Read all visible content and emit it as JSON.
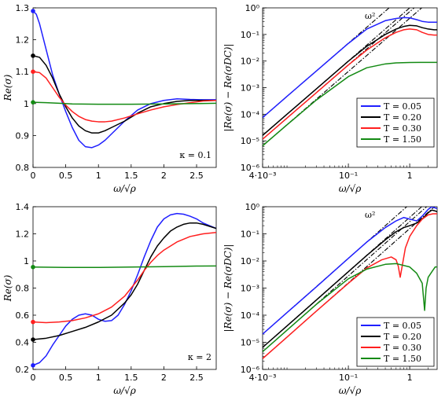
{
  "colors": {
    "blue": "#1f1fff",
    "black": "#000000",
    "red": "#ff1f1f",
    "green": "#138a13"
  },
  "legend_labels": [
    "T = 0.05",
    "T = 0.20",
    "T = 0.30",
    "T = 1.50"
  ],
  "chart_data": [
    {
      "type": "line",
      "panel": "top-left",
      "xlabel": "ω/√ρ",
      "ylabel": "Re(σ)",
      "annotation": "κ = 0.1",
      "xlim": [
        0,
        2.8
      ],
      "ylim": [
        0.8,
        1.3
      ],
      "xticks": [
        0,
        0.5,
        1,
        1.5,
        2,
        2.5
      ],
      "xtick_labels": [
        "0",
        "0.5",
        "1",
        "1.5",
        "2",
        "2.5"
      ],
      "yticks": [
        0.8,
        0.9,
        1.0,
        1.1,
        1.2,
        1.3
      ],
      "ytick_labels": [
        "0.8",
        "0.9",
        "1",
        "1.1",
        "1.2",
        "1.3"
      ],
      "series": [
        {
          "name": "T = 0.05",
          "color": "blue",
          "x": [
            0,
            0.05,
            0.1,
            0.2,
            0.3,
            0.4,
            0.5,
            0.6,
            0.7,
            0.8,
            0.9,
            1.0,
            1.1,
            1.2,
            1.4,
            1.6,
            1.8,
            2.0,
            2.2,
            2.4,
            2.6,
            2.8
          ],
          "y": [
            1.29,
            1.28,
            1.25,
            1.17,
            1.09,
            1.03,
            0.975,
            0.925,
            0.885,
            0.865,
            0.862,
            0.87,
            0.885,
            0.905,
            0.945,
            0.98,
            1.0,
            1.01,
            1.015,
            1.013,
            1.012,
            1.012
          ]
        },
        {
          "name": "T = 0.20",
          "color": "black",
          "x": [
            0,
            0.1,
            0.2,
            0.3,
            0.4,
            0.5,
            0.6,
            0.7,
            0.8,
            0.9,
            1.0,
            1.1,
            1.2,
            1.4,
            1.6,
            1.8,
            2.0,
            2.2,
            2.4,
            2.6,
            2.8
          ],
          "y": [
            1.15,
            1.145,
            1.12,
            1.08,
            1.03,
            0.99,
            0.955,
            0.93,
            0.915,
            0.908,
            0.908,
            0.915,
            0.925,
            0.945,
            0.97,
            0.99,
            1.0,
            1.007,
            1.01,
            1.01,
            1.01
          ]
        },
        {
          "name": "T = 0.30",
          "color": "red",
          "x": [
            0,
            0.1,
            0.2,
            0.3,
            0.4,
            0.5,
            0.6,
            0.7,
            0.8,
            0.9,
            1.0,
            1.1,
            1.2,
            1.4,
            1.6,
            1.8,
            2.0,
            2.2,
            2.4,
            2.6,
            2.8
          ],
          "y": [
            1.1,
            1.097,
            1.08,
            1.05,
            1.02,
            0.995,
            0.975,
            0.96,
            0.95,
            0.945,
            0.943,
            0.943,
            0.945,
            0.955,
            0.968,
            0.98,
            0.99,
            0.997,
            1.003,
            1.008,
            1.01
          ]
        },
        {
          "name": "T = 1.50",
          "color": "green",
          "x": [
            0,
            0.2,
            0.4,
            0.6,
            1.0,
            1.5,
            2.0,
            2.5,
            2.8
          ],
          "y": [
            1.004,
            1.003,
            1.001,
            0.999,
            0.998,
            0.998,
            0.999,
            1.0,
            1.001
          ]
        }
      ]
    },
    {
      "type": "line",
      "panel": "top-right",
      "xscale": "log",
      "yscale": "log",
      "xlabel": "ω/√ρ",
      "ylabel": "|Re(σ) − Re(σDC)|",
      "annotation": "ω²",
      "xlim": [
        0.004,
        2.8
      ],
      "ylim": [
        1e-06,
        1
      ],
      "xtick_labels": [
        "4·10⁻³",
        "10⁻¹",
        "1"
      ],
      "ytick_labels": [
        "10⁻⁶",
        "10⁻⁵",
        "10⁻⁴",
        "10⁻³",
        "10⁻²",
        "10⁻¹",
        "10⁰"
      ],
      "legend": "right",
      "series": [
        {
          "name": "T = 0.05",
          "color": "blue",
          "x": [
            0.004,
            0.01,
            0.03,
            0.1,
            0.2,
            0.4,
            0.6,
            0.8,
            1.0,
            1.3,
            1.6,
            2.0,
            2.5,
            2.8
          ],
          "y": [
            7.5e-05,
            0.00047,
            0.0042,
            0.046,
            0.16,
            0.33,
            0.4,
            0.43,
            0.42,
            0.36,
            0.31,
            0.29,
            0.29,
            0.29
          ]
        },
        {
          "name": "T = 0.20",
          "color": "black",
          "x": [
            0.004,
            0.01,
            0.03,
            0.1,
            0.2,
            0.4,
            0.6,
            0.8,
            1.0,
            1.3,
            1.6,
            2.0,
            2.5,
            2.8
          ],
          "y": [
            1.6e-05,
            0.0001,
            0.00089,
            0.0099,
            0.036,
            0.1,
            0.16,
            0.2,
            0.22,
            0.21,
            0.18,
            0.16,
            0.15,
            0.15
          ]
        },
        {
          "name": "T = 0.30",
          "color": "red",
          "x": [
            0.004,
            0.01,
            0.03,
            0.1,
            0.2,
            0.4,
            0.6,
            0.8,
            1.0,
            1.3,
            1.6,
            2.0,
            2.5,
            2.8
          ],
          "y": [
            1.15e-05,
            7.2e-05,
            0.00064,
            0.0071,
            0.026,
            0.075,
            0.12,
            0.15,
            0.16,
            0.15,
            0.12,
            0.1,
            0.095,
            0.095
          ]
        },
        {
          "name": "T = 1.50",
          "color": "green",
          "x": [
            0.004,
            0.01,
            0.03,
            0.1,
            0.2,
            0.4,
            0.6,
            1.0,
            1.5,
            2.0,
            2.5,
            2.8
          ],
          "y": [
            6.5e-06,
            4e-05,
            0.00034,
            0.0026,
            0.0056,
            0.0078,
            0.0085,
            0.0088,
            0.0089,
            0.0089,
            0.0089,
            0.0089
          ]
        }
      ]
    },
    {
      "type": "line",
      "panel": "bottom-left",
      "xlabel": "ω/√ρ",
      "ylabel": "Re(σ)",
      "annotation": "κ = 2",
      "xlim": [
        0,
        2.8
      ],
      "ylim": [
        0.2,
        1.4
      ],
      "xticks": [
        0,
        0.5,
        1,
        1.5,
        2,
        2.5
      ],
      "xtick_labels": [
        "0",
        "0.5",
        "1",
        "1.5",
        "2",
        "2.5"
      ],
      "yticks": [
        0.2,
        0.4,
        0.6,
        0.8,
        1.0,
        1.2,
        1.4
      ],
      "ytick_labels": [
        "0.2",
        "0.4",
        "0.6",
        "0.8",
        "1",
        "1.2",
        "1.4"
      ],
      "series": [
        {
          "name": "T = 0.05",
          "color": "blue",
          "x": [
            0,
            0.1,
            0.2,
            0.3,
            0.4,
            0.5,
            0.6,
            0.7,
            0.8,
            0.9,
            1.0,
            1.1,
            1.2,
            1.3,
            1.4,
            1.5,
            1.6,
            1.7,
            1.8,
            1.9,
            2.0,
            2.1,
            2.2,
            2.3,
            2.4,
            2.5,
            2.6,
            2.7,
            2.8
          ],
          "y": [
            0.23,
            0.25,
            0.3,
            0.38,
            0.45,
            0.52,
            0.57,
            0.6,
            0.61,
            0.6,
            0.57,
            0.555,
            0.56,
            0.6,
            0.68,
            0.78,
            0.9,
            1.03,
            1.15,
            1.25,
            1.31,
            1.34,
            1.35,
            1.345,
            1.33,
            1.31,
            1.28,
            1.26,
            1.24
          ]
        },
        {
          "name": "T = 0.20",
          "color": "black",
          "x": [
            0,
            0.2,
            0.4,
            0.6,
            0.8,
            1.0,
            1.2,
            1.4,
            1.5,
            1.6,
            1.7,
            1.8,
            1.9,
            2.0,
            2.1,
            2.2,
            2.3,
            2.4,
            2.5,
            2.6,
            2.7,
            2.8
          ],
          "y": [
            0.42,
            0.43,
            0.45,
            0.48,
            0.51,
            0.55,
            0.6,
            0.69,
            0.75,
            0.83,
            0.93,
            1.03,
            1.11,
            1.17,
            1.22,
            1.25,
            1.27,
            1.28,
            1.28,
            1.27,
            1.255,
            1.24
          ]
        },
        {
          "name": "T = 0.30",
          "color": "red",
          "x": [
            0,
            0.2,
            0.4,
            0.6,
            0.8,
            1.0,
            1.2,
            1.4,
            1.5,
            1.6,
            1.7,
            1.8,
            1.9,
            2.0,
            2.2,
            2.4,
            2.6,
            2.8
          ],
          "y": [
            0.55,
            0.545,
            0.55,
            0.56,
            0.58,
            0.61,
            0.66,
            0.74,
            0.8,
            0.86,
            0.93,
            0.99,
            1.04,
            1.08,
            1.14,
            1.18,
            1.2,
            1.21
          ]
        },
        {
          "name": "T = 1.50",
          "color": "green",
          "x": [
            0,
            0.5,
            1.0,
            1.5,
            2.0,
            2.5,
            2.8
          ],
          "y": [
            0.955,
            0.952,
            0.952,
            0.955,
            0.958,
            0.962,
            0.963
          ]
        }
      ]
    },
    {
      "type": "line",
      "panel": "bottom-right",
      "xscale": "log",
      "yscale": "log",
      "xlabel": "ω/√ρ",
      "ylabel": "|Re(σ) − Re(σDC)|",
      "annotation": "ω²",
      "xlim": [
        0.004,
        2.8
      ],
      "ylim": [
        1e-06,
        1
      ],
      "xtick_labels": [
        "4·10⁻³",
        "10⁻¹",
        "1"
      ],
      "ytick_labels": [
        "10⁻⁶",
        "10⁻⁵",
        "10⁻⁴",
        "10⁻³",
        "10⁻²",
        "10⁻¹",
        "10⁰"
      ],
      "legend": "lower-right",
      "series": [
        {
          "name": "T = 0.05",
          "color": "blue",
          "x": [
            0.004,
            0.01,
            0.03,
            0.1,
            0.2,
            0.4,
            0.6,
            0.8,
            1.0,
            1.3,
            1.6,
            2.0,
            2.3,
            2.6,
            2.8
          ],
          "y": [
            2e-05,
            0.000125,
            0.0011,
            0.0125,
            0.05,
            0.17,
            0.3,
            0.4,
            0.35,
            0.3,
            0.45,
            0.8,
            1.0,
            0.9,
            0.85
          ]
        },
        {
          "name": "T = 0.20",
          "color": "black",
          "x": [
            0.004,
            0.01,
            0.03,
            0.1,
            0.2,
            0.4,
            0.6,
            0.8,
            1.0,
            1.3,
            1.6,
            2.0,
            2.3,
            2.6,
            2.8
          ],
          "y": [
            6.5e-06,
            4e-05,
            0.00036,
            0.004,
            0.016,
            0.06,
            0.12,
            0.17,
            0.2,
            0.25,
            0.35,
            0.6,
            0.75,
            0.7,
            0.65
          ]
        },
        {
          "name": "T = 0.30",
          "color": "red",
          "x": [
            0.004,
            0.01,
            0.03,
            0.1,
            0.2,
            0.35,
            0.5,
            0.6,
            0.65,
            0.7,
            0.75,
            0.85,
            1.0,
            1.3,
            1.6,
            2.0,
            2.4,
            2.8
          ],
          "y": [
            2.5e-06,
            1.55e-05,
            0.00014,
            0.0015,
            0.0055,
            0.011,
            0.014,
            0.011,
            0.0065,
            0.0025,
            0.006,
            0.03,
            0.08,
            0.2,
            0.35,
            0.5,
            0.55,
            0.55
          ]
        },
        {
          "name": "T = 1.50",
          "color": "green",
          "x": [
            0.004,
            0.01,
            0.03,
            0.1,
            0.2,
            0.4,
            0.6,
            1.0,
            1.3,
            1.6,
            1.75,
            1.85,
            2.0,
            2.3,
            2.6,
            2.8
          ],
          "y": [
            4.5e-06,
            2.8e-05,
            0.00025,
            0.0022,
            0.005,
            0.0075,
            0.008,
            0.006,
            0.0035,
            0.0015,
            0.00015,
            0.001,
            0.0025,
            0.004,
            0.006,
            0.006
          ]
        }
      ]
    }
  ]
}
